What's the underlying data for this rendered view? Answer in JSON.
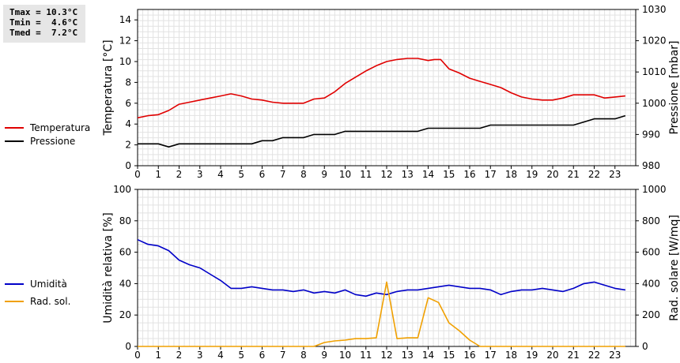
{
  "stats": {
    "tmax": "Tmax = 10.3°C",
    "tmin": "Tmin =  4.6°C",
    "tmed": "Tmed =  7.2°C"
  },
  "legend_top": [
    {
      "label": "Temperatura",
      "color": "#e00000"
    },
    {
      "label": "Pressione",
      "color": "#000000"
    }
  ],
  "legend_bottom": [
    {
      "label": "Umidità",
      "color": "#0000c8"
    },
    {
      "label": "Rad. sol.",
      "color": "#f0a000"
    }
  ],
  "chart_data": [
    {
      "type": "line",
      "xlim": [
        0,
        24
      ],
      "xticks": [
        0,
        1,
        2,
        3,
        4,
        5,
        6,
        7,
        8,
        9,
        10,
        11,
        12,
        13,
        14,
        15,
        16,
        17,
        18,
        19,
        20,
        21,
        22,
        23
      ],
      "ylabel": "Temperatura [°C]",
      "ylim": [
        0,
        15
      ],
      "yticks": [
        0,
        2,
        4,
        6,
        8,
        10,
        12,
        14
      ],
      "y2label": "Pressione [mbar]",
      "y2lim": [
        980,
        1030
      ],
      "y2ticks": [
        980,
        990,
        1000,
        1010,
        1020,
        1030
      ],
      "grid": true,
      "series": [
        {
          "name": "Temperatura",
          "axis": "left",
          "color": "#e00000",
          "points": [
            [
              0,
              4.6
            ],
            [
              0.5,
              4.8
            ],
            [
              1,
              4.9
            ],
            [
              1.5,
              5.3
            ],
            [
              2,
              5.9
            ],
            [
              2.5,
              6.1
            ],
            [
              3,
              6.3
            ],
            [
              3.5,
              6.5
            ],
            [
              4,
              6.7
            ],
            [
              4.5,
              6.9
            ],
            [
              5,
              6.7
            ],
            [
              5.5,
              6.4
            ],
            [
              6,
              6.3
            ],
            [
              6.5,
              6.1
            ],
            [
              7,
              6.0
            ],
            [
              7.5,
              6.0
            ],
            [
              8,
              6.0
            ],
            [
              8.5,
              6.4
            ],
            [
              9,
              6.5
            ],
            [
              9.5,
              7.1
            ],
            [
              10,
              7.9
            ],
            [
              10.5,
              8.5
            ],
            [
              11,
              9.1
            ],
            [
              11.5,
              9.6
            ],
            [
              12,
              10.0
            ],
            [
              12.5,
              10.2
            ],
            [
              13,
              10.3
            ],
            [
              13.5,
              10.3
            ],
            [
              14,
              10.1
            ],
            [
              14.3,
              10.2
            ],
            [
              14.6,
              10.2
            ],
            [
              15,
              9.3
            ],
            [
              15.5,
              8.9
            ],
            [
              16,
              8.4
            ],
            [
              16.5,
              8.1
            ],
            [
              17,
              7.8
            ],
            [
              17.5,
              7.5
            ],
            [
              18,
              7.0
            ],
            [
              18.5,
              6.6
            ],
            [
              19,
              6.4
            ],
            [
              19.5,
              6.3
            ],
            [
              20,
              6.3
            ],
            [
              20.5,
              6.5
            ],
            [
              21,
              6.8
            ],
            [
              21.5,
              6.8
            ],
            [
              22,
              6.8
            ],
            [
              22.5,
              6.5
            ],
            [
              23,
              6.6
            ],
            [
              23.5,
              6.7
            ]
          ]
        },
        {
          "name": "Pressione",
          "axis": "right",
          "color": "#000000",
          "points": [
            [
              0,
              987
            ],
            [
              1,
              987
            ],
            [
              1.5,
              986
            ],
            [
              2,
              987
            ],
            [
              2.5,
              987
            ],
            [
              3,
              987
            ],
            [
              3.5,
              987
            ],
            [
              4,
              987
            ],
            [
              4.5,
              987
            ],
            [
              5,
              987
            ],
            [
              5.5,
              987
            ],
            [
              6,
              988
            ],
            [
              6.5,
              988
            ],
            [
              7,
              989
            ],
            [
              7.5,
              989
            ],
            [
              8,
              989
            ],
            [
              8.5,
              990
            ],
            [
              9,
              990
            ],
            [
              9.5,
              990
            ],
            [
              10,
              991
            ],
            [
              10.5,
              991
            ],
            [
              11,
              991
            ],
            [
              11.5,
              991
            ],
            [
              12,
              991
            ],
            [
              12.5,
              991
            ],
            [
              13,
              991
            ],
            [
              13.5,
              991
            ],
            [
              14,
              992
            ],
            [
              14.5,
              992
            ],
            [
              15,
              992
            ],
            [
              15.5,
              992
            ],
            [
              16,
              992
            ],
            [
              16.5,
              992
            ],
            [
              17,
              993
            ],
            [
              17.5,
              993
            ],
            [
              18,
              993
            ],
            [
              18.5,
              993
            ],
            [
              19,
              993
            ],
            [
              19.5,
              993
            ],
            [
              20,
              993
            ],
            [
              20.5,
              993
            ],
            [
              21,
              993
            ],
            [
              21.5,
              994
            ],
            [
              22,
              995
            ],
            [
              22.5,
              995
            ],
            [
              23,
              995
            ],
            [
              23.5,
              996
            ]
          ]
        }
      ]
    },
    {
      "type": "line",
      "xlim": [
        0,
        24
      ],
      "xticks": [
        0,
        1,
        2,
        3,
        4,
        5,
        6,
        7,
        8,
        9,
        10,
        11,
        12,
        13,
        14,
        15,
        16,
        17,
        18,
        19,
        20,
        21,
        22,
        23
      ],
      "ylabel": "Umidità relativa [%]",
      "ylim": [
        0,
        100
      ],
      "yticks": [
        0,
        20,
        40,
        60,
        80,
        100
      ],
      "y2label": "Rad. solare [W/mq]",
      "y2lim": [
        0,
        1000
      ],
      "y2ticks": [
        0,
        200,
        400,
        600,
        800,
        1000
      ],
      "grid": true,
      "series": [
        {
          "name": "Umidità",
          "axis": "left",
          "color": "#0000c8",
          "points": [
            [
              0,
              68
            ],
            [
              0.5,
              65
            ],
            [
              1,
              64
            ],
            [
              1.5,
              61
            ],
            [
              2,
              55
            ],
            [
              2.5,
              52
            ],
            [
              3,
              50
            ],
            [
              3.5,
              46
            ],
            [
              4,
              42
            ],
            [
              4.5,
              37
            ],
            [
              5,
              37
            ],
            [
              5.5,
              38
            ],
            [
              6,
              37
            ],
            [
              6.5,
              36
            ],
            [
              7,
              36
            ],
            [
              7.5,
              35
            ],
            [
              8,
              36
            ],
            [
              8.5,
              34
            ],
            [
              9,
              35
            ],
            [
              9.5,
              34
            ],
            [
              10,
              36
            ],
            [
              10.5,
              33
            ],
            [
              11,
              32
            ],
            [
              11.5,
              34
            ],
            [
              12,
              33
            ],
            [
              12.5,
              35
            ],
            [
              13,
              36
            ],
            [
              13.5,
              36
            ],
            [
              14,
              37
            ],
            [
              14.5,
              38
            ],
            [
              15,
              39
            ],
            [
              15.5,
              38
            ],
            [
              16,
              37
            ],
            [
              16.5,
              37
            ],
            [
              17,
              36
            ],
            [
              17.5,
              33
            ],
            [
              18,
              35
            ],
            [
              18.5,
              36
            ],
            [
              19,
              36
            ],
            [
              19.5,
              37
            ],
            [
              20,
              36
            ],
            [
              20.5,
              35
            ],
            [
              21,
              37
            ],
            [
              21.5,
              40
            ],
            [
              22,
              41
            ],
            [
              22.5,
              39
            ],
            [
              23,
              37
            ],
            [
              23.5,
              36
            ]
          ]
        },
        {
          "name": "Rad. sol.",
          "axis": "right",
          "color": "#f0a000",
          "points": [
            [
              0,
              0
            ],
            [
              8.5,
              0
            ],
            [
              9,
              25
            ],
            [
              9.5,
              35
            ],
            [
              10,
              40
            ],
            [
              10.5,
              50
            ],
            [
              11,
              50
            ],
            [
              11.5,
              55
            ],
            [
              12,
              410
            ],
            [
              12.5,
              50
            ],
            [
              13,
              55
            ],
            [
              13.5,
              55
            ],
            [
              14,
              310
            ],
            [
              14.5,
              280
            ],
            [
              15,
              150
            ],
            [
              15.5,
              100
            ],
            [
              16,
              40
            ],
            [
              16.5,
              0
            ],
            [
              23.5,
              0
            ]
          ]
        }
      ]
    }
  ]
}
